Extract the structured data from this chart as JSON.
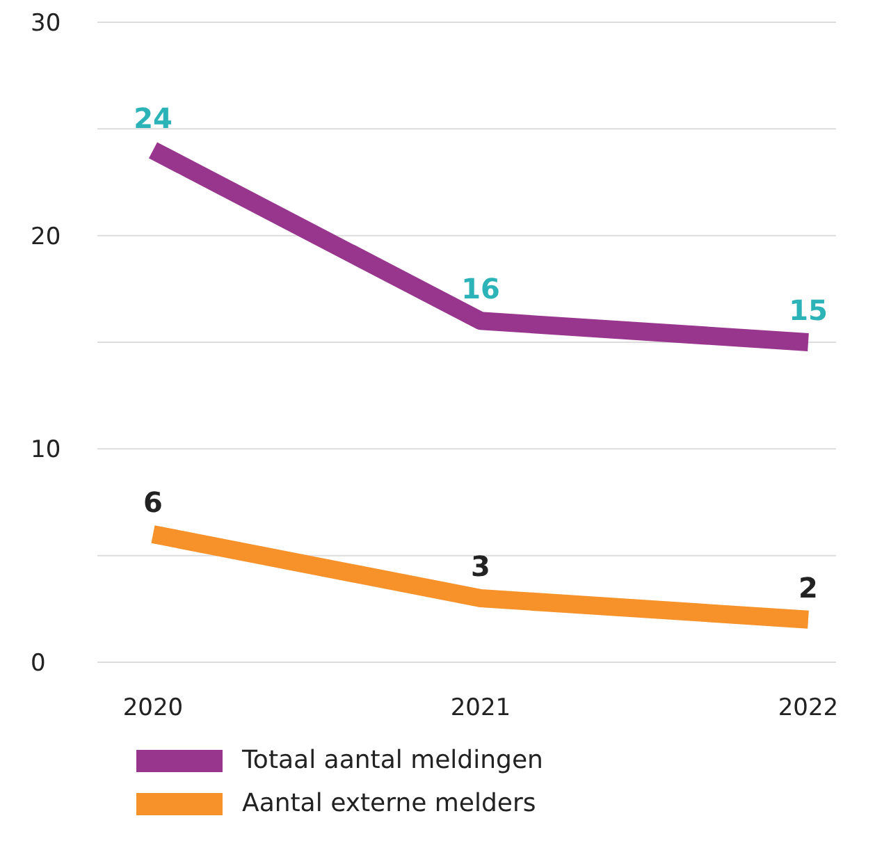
{
  "chart_data": {
    "type": "line",
    "categories": [
      "2020",
      "2021",
      "2022"
    ],
    "series": [
      {
        "name": "Totaal aantal meldingen",
        "color": "#98368e",
        "values": [
          24,
          16,
          15
        ]
      },
      {
        "name": "Aantal externe melders",
        "color": "#f7922a",
        "values": [
          6,
          3,
          2
        ]
      }
    ],
    "ylim": [
      0,
      30
    ],
    "yticks": [
      0,
      {
        "value": 5,
        "label": null
      },
      10,
      {
        "value": 15,
        "label": null
      },
      20,
      {
        "value": 25,
        "label": null
      },
      30
    ],
    "grid": "y",
    "legend": "bottom",
    "data_labels": true,
    "marker": "none"
  }
}
